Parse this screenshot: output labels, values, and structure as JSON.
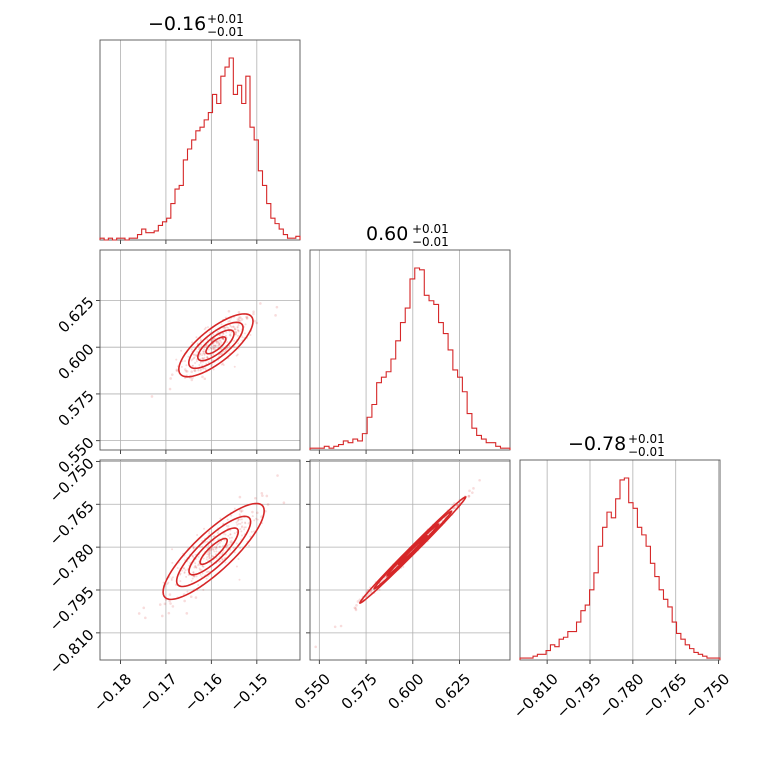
{
  "chart_data": {
    "type": "corner",
    "color": "#d62728",
    "params": [
      {
        "median": -0.16,
        "err_plus": 0.01,
        "err_minus": 0.01,
        "title_main": "−0.16",
        "title_sup": "+0.01",
        "title_sub": "−0.01",
        "range": [
          -0.1845,
          -0.1405
        ],
        "ticks": [
          -0.18,
          -0.17,
          -0.16,
          -0.15
        ],
        "tick_labels": [
          "−0.18",
          "−0.17",
          "−0.16",
          "−0.15"
        ]
      },
      {
        "median": 0.6,
        "err_plus": 0.01,
        "err_minus": 0.01,
        "title_main": "0.60",
        "title_sup": "+0.01",
        "title_sub": "−0.01",
        "range": [
          0.545,
          0.652
        ],
        "ticks": [
          0.55,
          0.575,
          0.6,
          0.625
        ],
        "tick_labels": [
          "0.550",
          "0.575",
          "0.600",
          "0.625"
        ]
      },
      {
        "median": -0.78,
        "err_plus": 0.01,
        "err_minus": 0.01,
        "title_main": "−0.78",
        "title_sup": "+0.01",
        "title_sub": "−0.01",
        "range": [
          -0.8195,
          -0.7495
        ],
        "ticks": [
          -0.81,
          -0.795,
          -0.78,
          -0.765,
          -0.75
        ],
        "tick_labels": [
          "−0.810",
          "−0.795",
          "−0.780",
          "−0.765",
          "−0.750"
        ]
      }
    ],
    "histograms": [
      {
        "param": 0,
        "counts": [
          1,
          0,
          1,
          0,
          1,
          1,
          0,
          1,
          1,
          3,
          6,
          4,
          4,
          5,
          8,
          10,
          12,
          20,
          28,
          30,
          44,
          50,
          55,
          60,
          62,
          66,
          70,
          80,
          75,
          90,
          95,
          100,
          80,
          85,
          75,
          90,
          62,
          55,
          38,
          30,
          20,
          12,
          9,
          6,
          3,
          1,
          1,
          2
        ]
      },
      {
        "param": 1,
        "counts": [
          1,
          1,
          1,
          2,
          1,
          2,
          3,
          5,
          4,
          6,
          5,
          9,
          18,
          25,
          37,
          40,
          43,
          50,
          60,
          70,
          78,
          94,
          100,
          99,
          85,
          82,
          80,
          70,
          64,
          55,
          44,
          40,
          32,
          20,
          12,
          8,
          6,
          4,
          4,
          2,
          1,
          1
        ]
      },
      {
        "param": 2,
        "counts": [
          1,
          1,
          1,
          2,
          3,
          3,
          5,
          8,
          7,
          11,
          12,
          15,
          15,
          20,
          26,
          29,
          37,
          46,
          60,
          70,
          78,
          75,
          85,
          95,
          96,
          83,
          80,
          70,
          66,
          60,
          51,
          44,
          37,
          32,
          28,
          20,
          14,
          11,
          8,
          6,
          4,
          3,
          2,
          1,
          1,
          1
        ]
      }
    ],
    "scatters": [
      {
        "x_param": 0,
        "y_param": 1,
        "center": [
          -0.159,
          0.601
        ],
        "slope": 2.47,
        "spread_along": 0.0088,
        "spread_across": 0.0024
      },
      {
        "x_param": 0,
        "y_param": 2,
        "center": [
          -0.1595,
          -0.7815
        ],
        "slope": 1.62,
        "spread_along": 0.0095,
        "spread_across": 0.0025
      },
      {
        "x_param": 1,
        "y_param": 2,
        "center": [
          0.6,
          -0.781
        ],
        "slope": 0.655,
        "spread_along": 0.0165,
        "spread_across": 0.0007
      }
    ],
    "grid": true,
    "legend": "none"
  }
}
